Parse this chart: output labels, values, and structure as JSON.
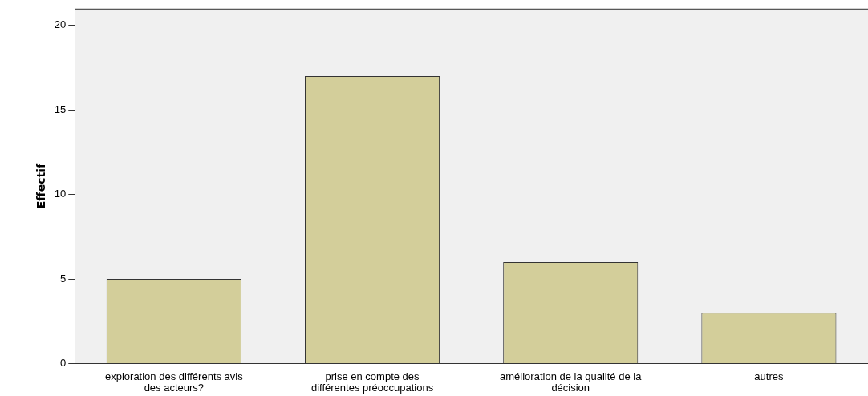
{
  "chart_data": {
    "type": "bar",
    "ylabel": "Effectif",
    "categories": [
      "exploration des différents avis des acteurs?",
      "prise en compte des différentes préoccupations",
      "amélioration de la qualité de la décision",
      "autres"
    ],
    "values": [
      5,
      17,
      6,
      3
    ],
    "color": "#d3ce9a",
    "ylim": [
      0,
      21
    ],
    "yticks": [
      0,
      5,
      10,
      15,
      20
    ],
    "grid": false,
    "legend": false
  }
}
